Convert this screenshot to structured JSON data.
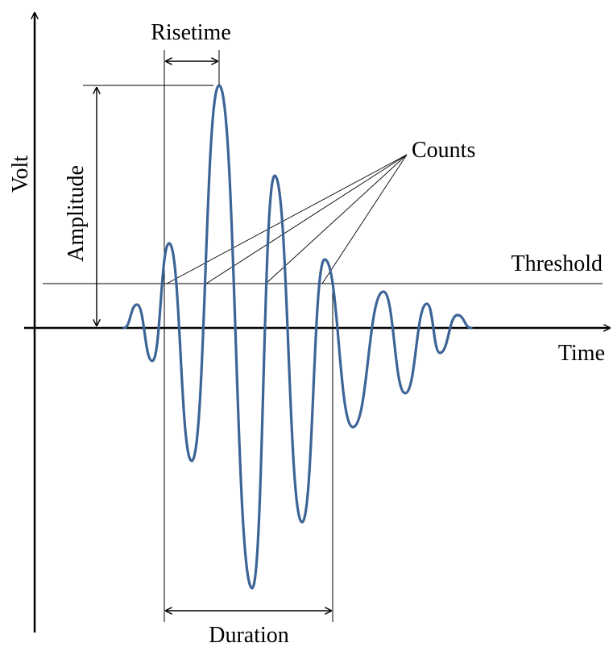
{
  "labels": {
    "y_axis": "Volt",
    "x_axis": "Time",
    "risetime": "Risetime",
    "amplitude": "Amplitude",
    "counts": "Counts",
    "threshold": "Threshold",
    "duration": "Duration"
  },
  "colors": {
    "waveform": "#3c6496",
    "lines": "#000000",
    "background": "#ffffff"
  }
}
